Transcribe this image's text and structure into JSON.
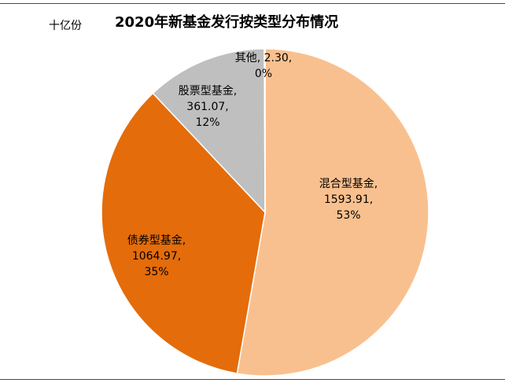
{
  "header": {
    "unit": "十亿份",
    "title": "2020年新基金发行按类型分布情况"
  },
  "colors": {
    "rule": "#a31f34"
  },
  "chart_data": {
    "type": "pie",
    "title": "2020年新基金发行按类型分布情况",
    "unit": "十亿份",
    "slices": [
      {
        "label": "混合型基金",
        "value": 1593.91,
        "value_text": "1593.91",
        "percent": "53%",
        "color": "#f9c08f"
      },
      {
        "label": "债券型基金",
        "value": 1064.97,
        "value_text": "1064.97",
        "percent": "35%",
        "color": "#e46c0a"
      },
      {
        "label": "股票型基金",
        "value": 361.07,
        "value_text": "361.07",
        "percent": "12%",
        "color": "#bfbfbf"
      },
      {
        "label": "其他",
        "value": 2.3,
        "value_text": "2.30",
        "percent": "0%",
        "color": "#bfbfbf"
      }
    ],
    "start_angle_deg": 0,
    "direction": "clockwise",
    "legend": "none",
    "data_labels": "category, value, percent"
  }
}
